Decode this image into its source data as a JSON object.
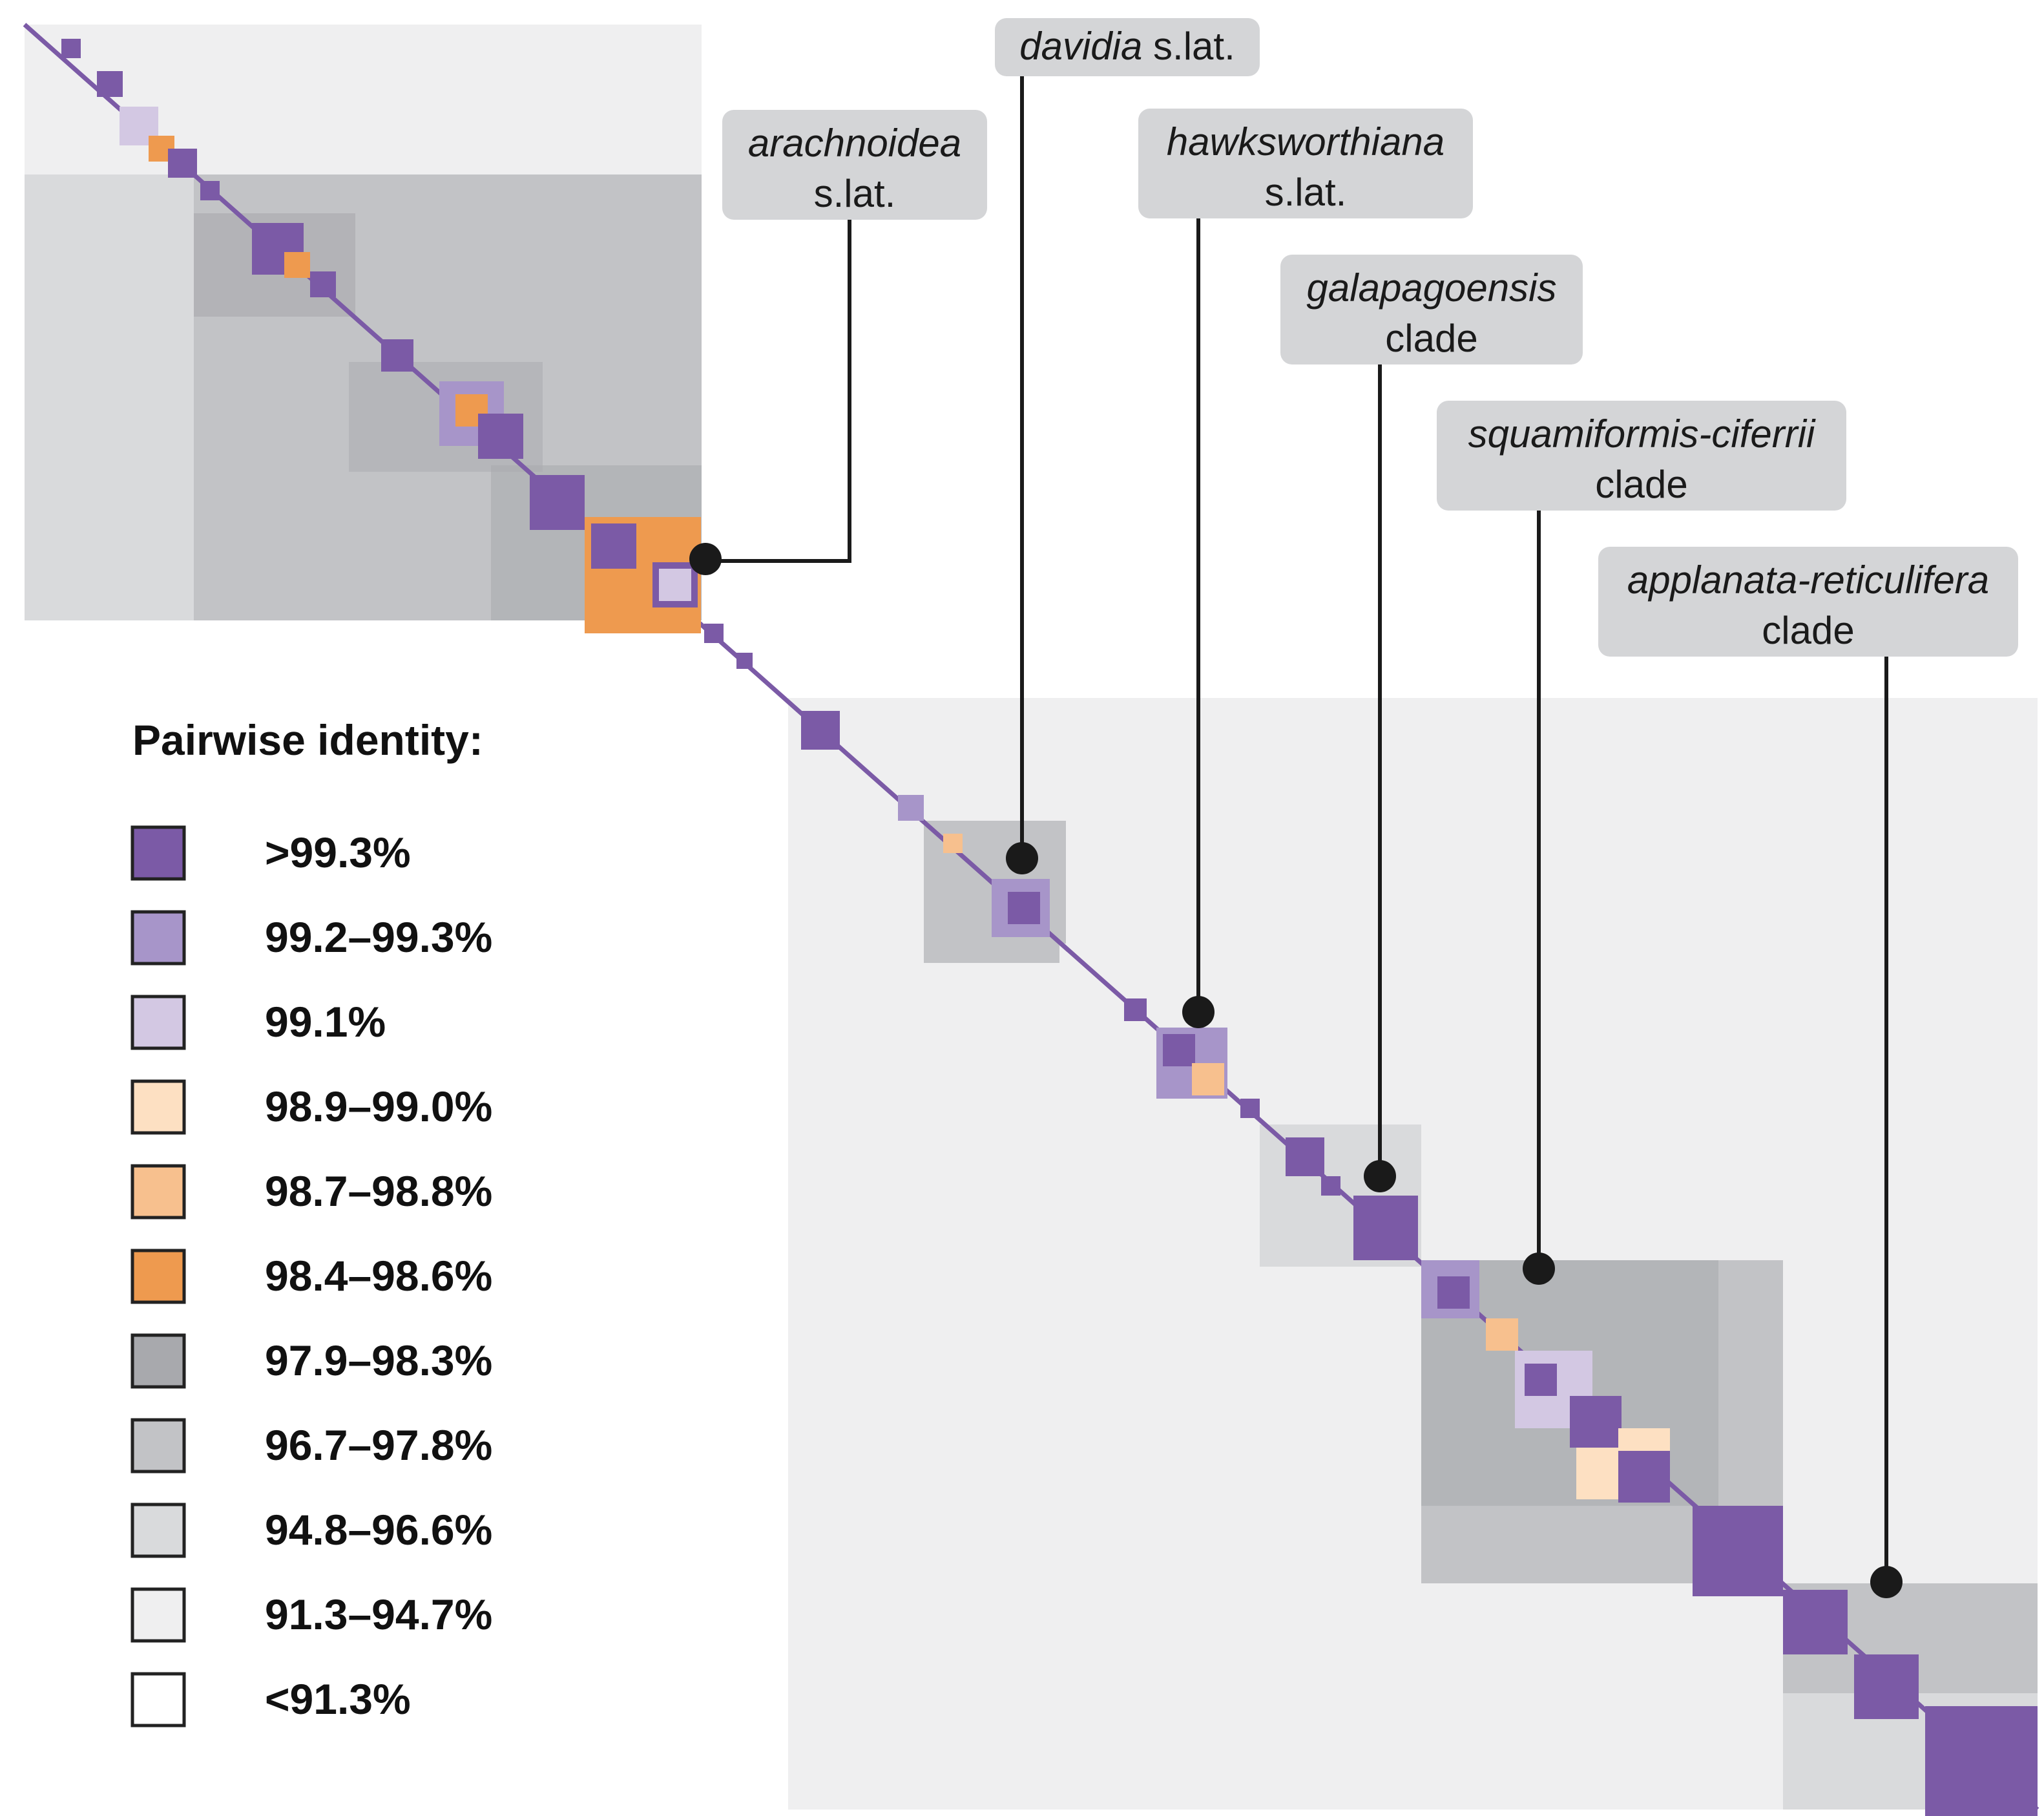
{
  "chart_data": {
    "type": "heatmap",
    "title": "",
    "legend": {
      "title": "Pairwise identity:",
      "placement": "left",
      "entries": [
        {
          "label": ">99.3%",
          "color": "#7b5aa6"
        },
        {
          "label": "99.2–99.3%",
          "color": "#a795c9"
        },
        {
          "label": "99.1%",
          "color": "#d3c8e3"
        },
        {
          "label": "98.9–99.0%",
          "color": "#fde0c2"
        },
        {
          "label": "98.7–98.8%",
          "color": "#f7c08e"
        },
        {
          "label": "98.4–98.6%",
          "color": "#ee9a4f"
        },
        {
          "label": "97.9–98.3%",
          "color": "#a8a9ad"
        },
        {
          "label": "96.7–97.8%",
          "color": "#c2c3c6"
        },
        {
          "label": "94.8–96.6%",
          "color": "#d9dadc"
        },
        {
          "label": "91.3–94.7%",
          "color": "#efeff0"
        },
        {
          "label": "<91.3%",
          "color": "#ffffff"
        }
      ]
    },
    "clades": [
      {
        "name_italic": "arachnoidea",
        "name_suffix": "",
        "line2": "s.lat."
      },
      {
        "name_italic": "davidia",
        "name_suffix": " s.lat.",
        "line2": ""
      },
      {
        "name_italic": "hawksworthiana",
        "name_suffix": "",
        "line2": "s.lat."
      },
      {
        "name_italic": "galapagoensis",
        "name_suffix": "",
        "line2": "clade"
      },
      {
        "name_italic": "squamiformis-ciferrii",
        "name_suffix": "",
        "line2": "clade"
      },
      {
        "name_italic": "applanata-reticulifera",
        "name_suffix": "",
        "line2": "clade"
      }
    ]
  }
}
